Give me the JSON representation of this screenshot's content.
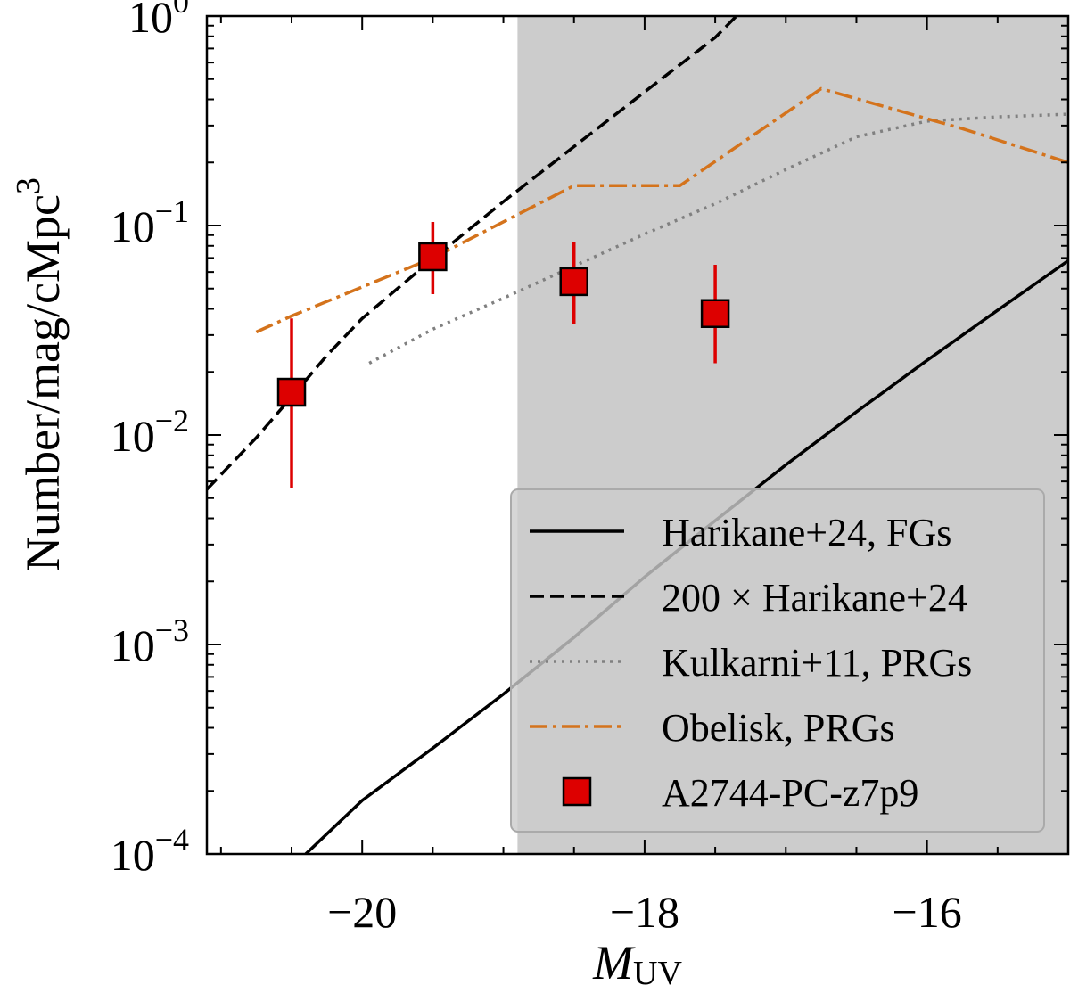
{
  "chart_data": {
    "type": "line",
    "title": "",
    "xlabel": {
      "main": "M",
      "sub": "UV"
    },
    "ylabel": "Number/mag/cMpc",
    "ylabel_sup": "3",
    "xlim": [
      -21.1,
      -15.0
    ],
    "ylim": [
      0.0001,
      1.0
    ],
    "yscale": "log",
    "x_ticks": [
      -20,
      -18,
      -16
    ],
    "x_tick_labels": [
      "−20",
      "−18",
      "−16"
    ],
    "y_ticks": [
      0.0001,
      0.001,
      0.01,
      0.1,
      1
    ],
    "y_tick_labels": [
      {
        "base": "10",
        "exp": "−4"
      },
      {
        "base": "10",
        "exp": "−3"
      },
      {
        "base": "10",
        "exp": "−2"
      },
      {
        "base": "10",
        "exp": "−1"
      },
      {
        "base": "10",
        "exp": "0"
      }
    ],
    "shaded_region": {
      "x_from": -18.9,
      "x_to": -15.0,
      "color": "#cccccc"
    },
    "legend_position": "lower right",
    "series": [
      {
        "name": "Harikane+24, FGs",
        "style": "solid",
        "color": "#000000",
        "x": [
          -20.4,
          -20.0,
          -19.5,
          -19.0,
          -18.5,
          -18.0,
          -17.5,
          -17.0,
          -16.5,
          -16.0,
          -15.5,
          -15.0
        ],
        "y": [
          0.0001,
          0.00018,
          0.00032,
          0.00058,
          0.00108,
          0.0021,
          0.0039,
          0.0072,
          0.0129,
          0.0227,
          0.0394,
          0.068
        ]
      },
      {
        "name": "200 × Harikane+24",
        "style": "dashed",
        "color": "#000000",
        "x": [
          -21.1,
          -20.75,
          -20.5,
          -20.25,
          -20.0,
          -19.75,
          -19.5,
          -19.0,
          -18.5,
          -18.0,
          -17.5,
          -17.35
        ],
        "y": [
          0.0055,
          0.0097,
          0.0152,
          0.024,
          0.036,
          0.05,
          0.0693,
          0.13,
          0.238,
          0.434,
          0.79,
          1.0
        ]
      },
      {
        "name": "Kulkarni+11, PRGs",
        "style": "dotted",
        "color": "#808080",
        "x": [
          -19.95,
          -19.5,
          -19.0,
          -18.5,
          -18.0,
          -17.5,
          -17.0,
          -16.5,
          -16.0,
          -15.5,
          -15.0
        ],
        "y": [
          0.022,
          0.032,
          0.045,
          0.064,
          0.091,
          0.127,
          0.185,
          0.265,
          0.315,
          0.33,
          0.34
        ]
      },
      {
        "name": "Obelisk, PRGs",
        "style": "dashdot",
        "color": "#d4731c",
        "x": [
          -20.75,
          -20.5,
          -19.5,
          -18.5,
          -17.75,
          -16.75,
          -15.75,
          -15.0
        ],
        "y": [
          0.031,
          0.037,
          0.07,
          0.155,
          0.155,
          0.45,
          0.29,
          0.2
        ]
      }
    ],
    "points": {
      "name": "A2744-PC-z7p9",
      "face_color": "#dd0000",
      "edge_color": "#000000",
      "error_color": "#dd0000",
      "x": [
        -20.5,
        -19.5,
        -18.5,
        -17.5
      ],
      "y": [
        0.016,
        0.071,
        0.054,
        0.038
      ],
      "y_lower": [
        0.0056,
        0.047,
        0.034,
        0.022
      ],
      "y_upper": [
        0.036,
        0.104,
        0.083,
        0.065
      ]
    }
  }
}
